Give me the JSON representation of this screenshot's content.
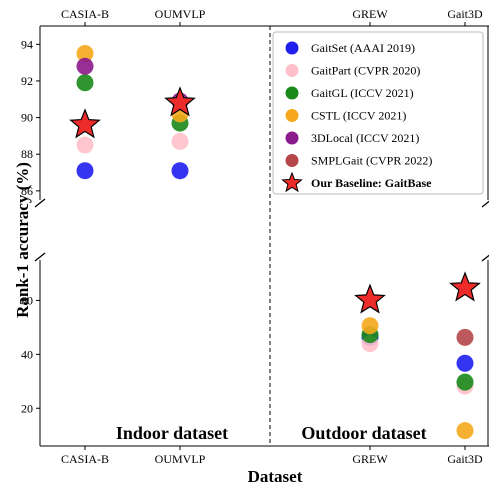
{
  "chart_data": {
    "type": "scatter",
    "categories": [
      "CASIA-B",
      "OUMVLP",
      "GREW",
      "Gait3D"
    ],
    "xlabel": "Dataset",
    "ylabel": "Rank-1 accuracy (%)",
    "y_upper_range": [
      85.5,
      95
    ],
    "y_upper_ticks": [
      86,
      88,
      90,
      92,
      94
    ],
    "y_lower_range": [
      6,
      75
    ],
    "y_lower_ticks": [
      20,
      40,
      60
    ],
    "axis_break": true,
    "grid": false,
    "legend_position": "top-right",
    "region_labels": [
      "Indoor dataset",
      "Outdoor dataset"
    ],
    "series": [
      {
        "name": "GaitSet (AAAI 2019)",
        "color": "#1f1ff0",
        "marker": "circle",
        "values": [
          87.1,
          87.1,
          46.3,
          36.7
        ]
      },
      {
        "name": "GaitPart (CVPR 2020)",
        "color": "#ffc0cb",
        "marker": "circle",
        "values": [
          88.5,
          88.7,
          44.0,
          28.2
        ]
      },
      {
        "name": "GaitGL (ICCV 2021)",
        "color": "#1a8a1a",
        "marker": "circle",
        "values": [
          91.9,
          89.7,
          47.3,
          29.7
        ]
      },
      {
        "name": "CSTL (ICCV 2021)",
        "color": "#f5a81c",
        "marker": "circle",
        "values": [
          93.5,
          90.2,
          50.6,
          11.7
        ]
      },
      {
        "name": "3DLocal (ICCV 2021)",
        "color": "#8b1a8b",
        "marker": "circle",
        "values": [
          92.8,
          90.9,
          null,
          null
        ]
      },
      {
        "name": "SMPLGait (CVPR 2022)",
        "color": "#b5474a",
        "marker": "circle",
        "values": [
          null,
          null,
          null,
          46.3
        ]
      },
      {
        "name": "Our Baseline: GaitBase",
        "color": "#ee2b2b",
        "marker": "star",
        "values": [
          89.6,
          90.8,
          60.1,
          64.6
        ]
      }
    ]
  }
}
